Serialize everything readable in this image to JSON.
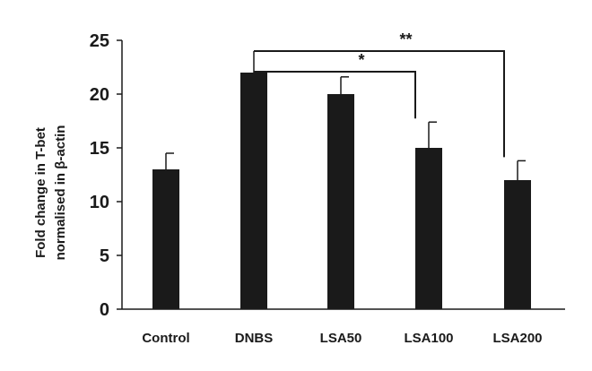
{
  "chart_data": {
    "type": "bar",
    "title": "",
    "xlabel": "",
    "ylabel_lines": [
      "Fold change in T-bet",
      "normalised in β-actin"
    ],
    "categories": [
      "Control",
      "DNBS",
      "LSA50",
      "LSA100",
      "LSA200"
    ],
    "values": [
      13,
      22,
      20,
      15,
      12
    ],
    "errors": [
      1.5,
      2.0,
      1.6,
      2.4,
      1.8
    ],
    "ylim": [
      0,
      25
    ],
    "yticks": [
      "0",
      "5",
      "10",
      "15",
      "20",
      "25"
    ],
    "bar_color": "#1a1a1a",
    "grid": false,
    "legend": "none",
    "significance": [
      {
        "from": "DNBS",
        "to": "LSA100",
        "label": "*"
      },
      {
        "from": "DNBS",
        "to": "LSA200",
        "label": "**"
      }
    ]
  }
}
